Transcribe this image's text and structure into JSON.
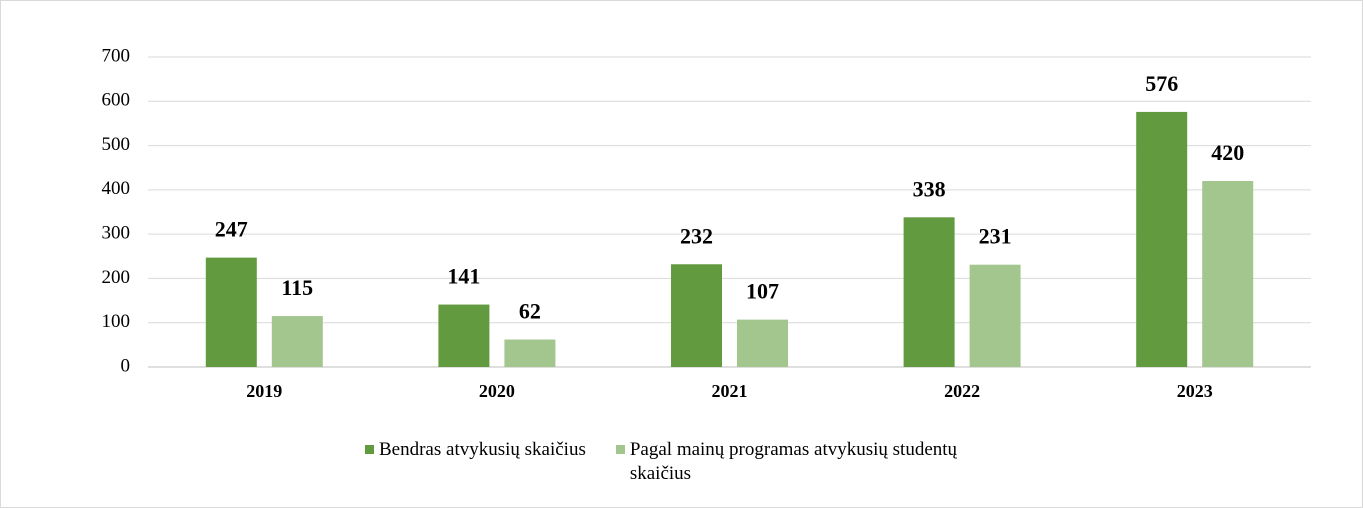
{
  "chart_data": {
    "type": "bar",
    "categories": [
      "2019",
      "2020",
      "2021",
      "2022",
      "2023"
    ],
    "series": [
      {
        "name": "Bendras atvykusių skaičius",
        "color": "#629b3f",
        "values": [
          247,
          141,
          232,
          338,
          576
        ]
      },
      {
        "name": "Pagal mainų programas atvykusių studentų skaičius",
        "color": "#a3c68f",
        "values": [
          115,
          62,
          107,
          231,
          420
        ]
      }
    ],
    "ylim": [
      0,
      700
    ],
    "yticks": [
      0,
      100,
      200,
      300,
      400,
      500,
      600,
      700
    ],
    "grid": true,
    "legend": "bottom"
  }
}
